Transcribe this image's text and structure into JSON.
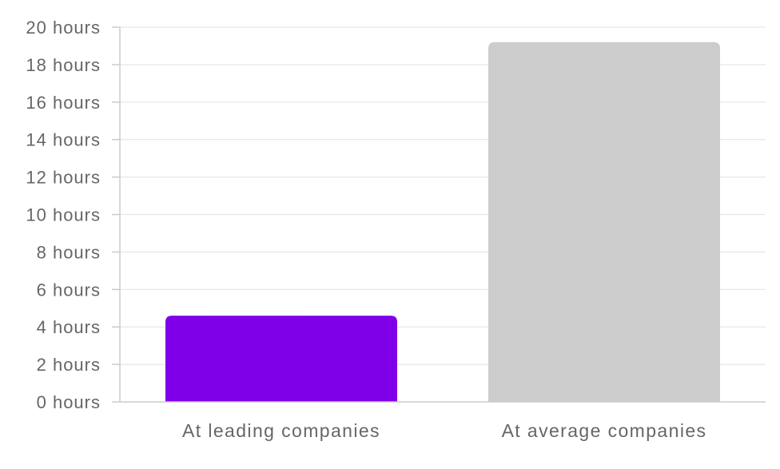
{
  "chart_data": {
    "type": "bar",
    "title": "",
    "xlabel": "",
    "ylabel": "",
    "categories": [
      "At leading companies",
      "At average companies"
    ],
    "values": [
      4.6,
      19.2
    ],
    "colors": [
      "#7f00e8",
      "#cccccc"
    ],
    "ylim": [
      0,
      20
    ],
    "yticks": [
      0,
      2,
      4,
      6,
      8,
      10,
      12,
      14,
      16,
      18,
      20
    ],
    "ytick_labels": [
      "0 hours",
      "2 hours",
      "4 hours",
      "6 hours",
      "8 hours",
      "10 hours",
      "12 hours",
      "14 hours",
      "16 hours",
      "18 hours",
      "20 hours"
    ],
    "grid": true,
    "legend": "none"
  }
}
